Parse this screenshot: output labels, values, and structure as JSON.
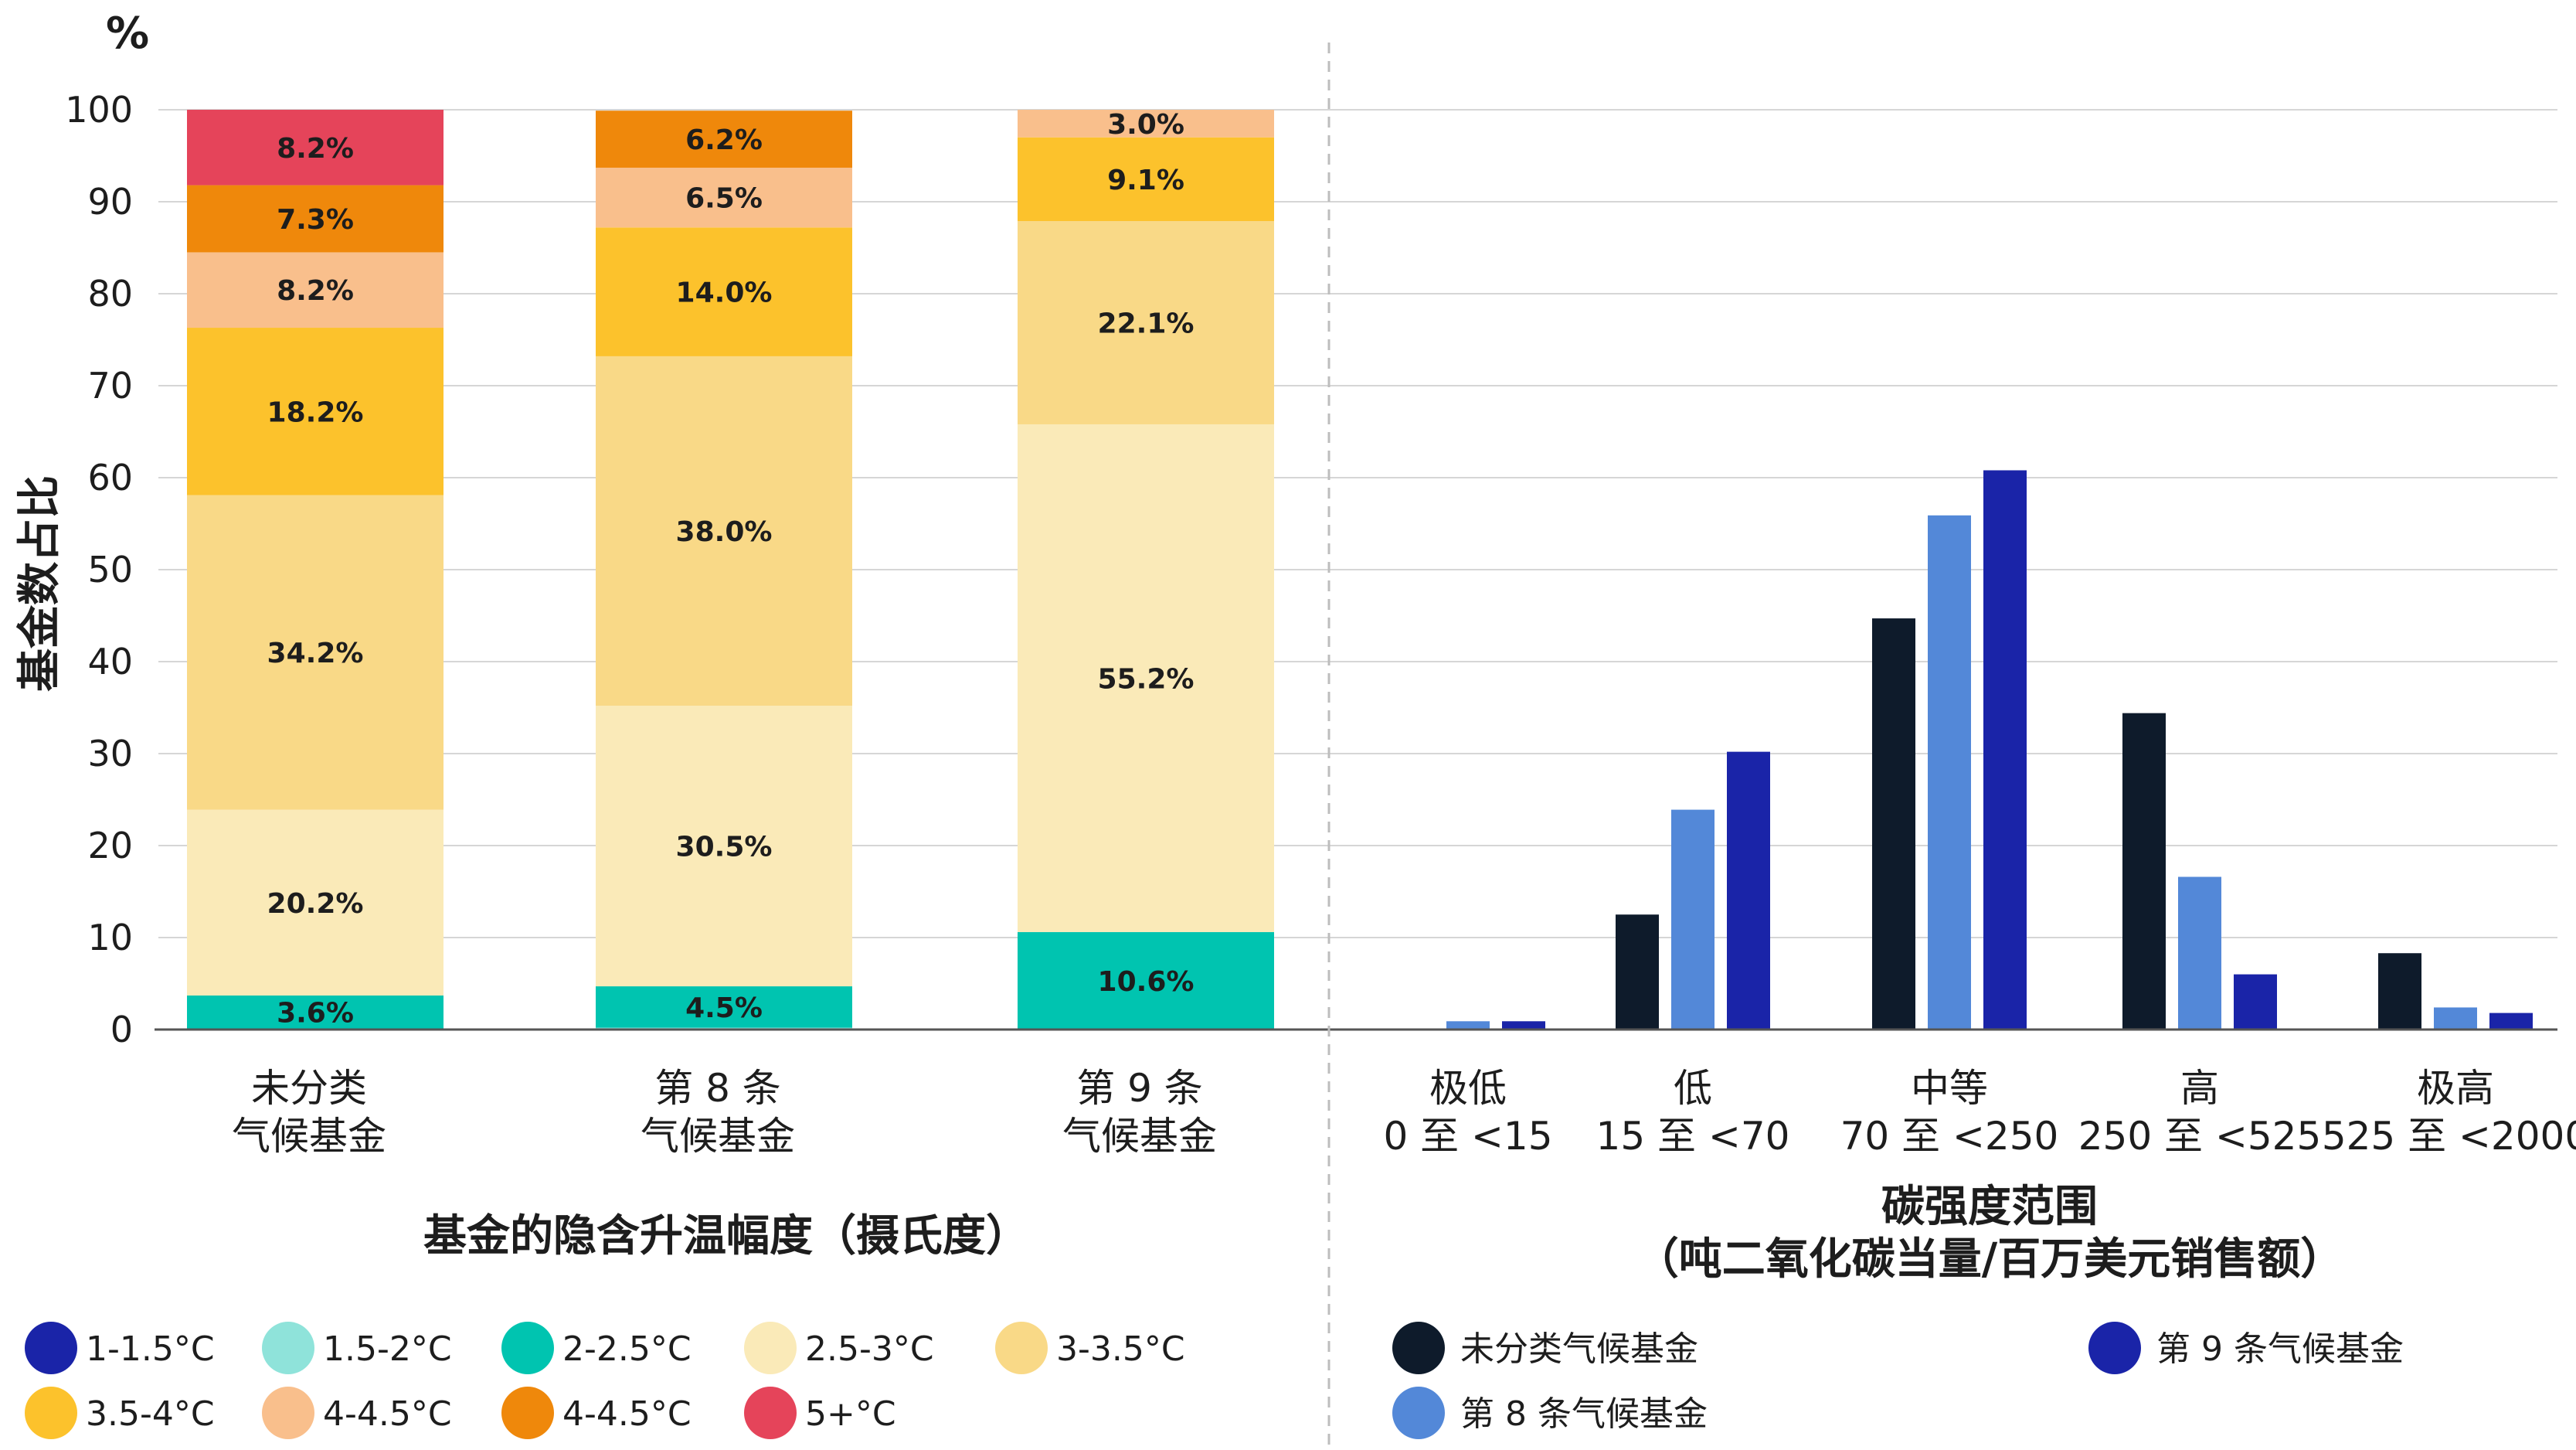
{
  "chart_data": [
    {
      "type": "bar",
      "stacked": true,
      "title": "基金的隐含升温幅度（摄氏度）",
      "ylabel": "基金数占比",
      "yunit": "%",
      "ylim": [
        0,
        100
      ],
      "yticks": [
        0,
        10,
        20,
        30,
        40,
        50,
        60,
        70,
        80,
        90,
        100
      ],
      "categories": [
        [
          "未分类",
          "气候基金"
        ],
        [
          "第 8 条",
          "气候基金"
        ],
        [
          "第 9 条",
          "气候基金"
        ]
      ],
      "series": [
        {
          "name": "1-1.5°C",
          "color": "#1a24a8",
          "values": [
            0.0,
            0.0,
            0.0
          ],
          "labels": [
            "",
            "",
            ""
          ]
        },
        {
          "name": "1.5-2°C",
          "color": "#8fe3da",
          "values": [
            0.1,
            0.2,
            0.0
          ],
          "labels": [
            "",
            "",
            ""
          ]
        },
        {
          "name": "2-2.5°C",
          "color": "#00c4b0",
          "values": [
            3.6,
            4.5,
            10.6
          ],
          "labels": [
            "3.6%",
            "4.5%",
            "10.6%"
          ]
        },
        {
          "name": "2.5-3°C",
          "color": "#faeab8",
          "values": [
            20.2,
            30.5,
            55.2
          ],
          "labels": [
            "20.2%",
            "30.5%",
            "55.2%"
          ]
        },
        {
          "name": "3-3.5°C",
          "color": "#f9d987",
          "values": [
            34.2,
            38.0,
            22.1
          ],
          "labels": [
            "34.2%",
            "38.0%",
            "22.1%"
          ]
        },
        {
          "name": "3.5-4°C",
          "color": "#fcc22c",
          "values": [
            18.2,
            14.0,
            9.1
          ],
          "labels": [
            "18.2%",
            "14.0%",
            "9.1%"
          ]
        },
        {
          "name": "4-4.5°C",
          "color": "#f9bf8c",
          "values": [
            8.2,
            6.5,
            3.0
          ],
          "labels": [
            "8.2%",
            "6.5%",
            "3.0%"
          ]
        },
        {
          "name": "4-4.5°C",
          "color": "#ef880b",
          "values": [
            7.3,
            6.2,
            0.0
          ],
          "labels": [
            "7.3%",
            "6.2%",
            ""
          ]
        },
        {
          "name": "5+°C",
          "color": "#e5445a",
          "values": [
            8.2,
            0.0,
            0.0
          ],
          "labels": [
            "8.2%",
            "",
            ""
          ]
        }
      ]
    },
    {
      "type": "bar",
      "grouped": true,
      "title": [
        "碳强度范围",
        "（吨二氧化碳当量/百万美元销售额）"
      ],
      "ylim": [
        0,
        100
      ],
      "categories": [
        [
          "极低",
          "0 至 <15"
        ],
        [
          "低",
          "15 至 <70"
        ],
        [
          "中等",
          "70 至 <250"
        ],
        [
          "高",
          "250 至 <525"
        ],
        [
          "极高",
          "525 至 <2000"
        ]
      ],
      "series": [
        {
          "name": "未分类气候基金",
          "color": "#0e1b2b",
          "values": [
            0.0,
            12.5,
            44.7,
            34.4,
            8.3
          ]
        },
        {
          "name": "第 8 条气候基金",
          "color": "#5388d8",
          "values": [
            0.9,
            23.9,
            55.9,
            16.6,
            2.4
          ]
        },
        {
          "name": "第 9 条气候基金",
          "color": "#1a24a8",
          "values": [
            0.9,
            30.2,
            60.8,
            6.0,
            1.8
          ]
        }
      ]
    }
  ]
}
